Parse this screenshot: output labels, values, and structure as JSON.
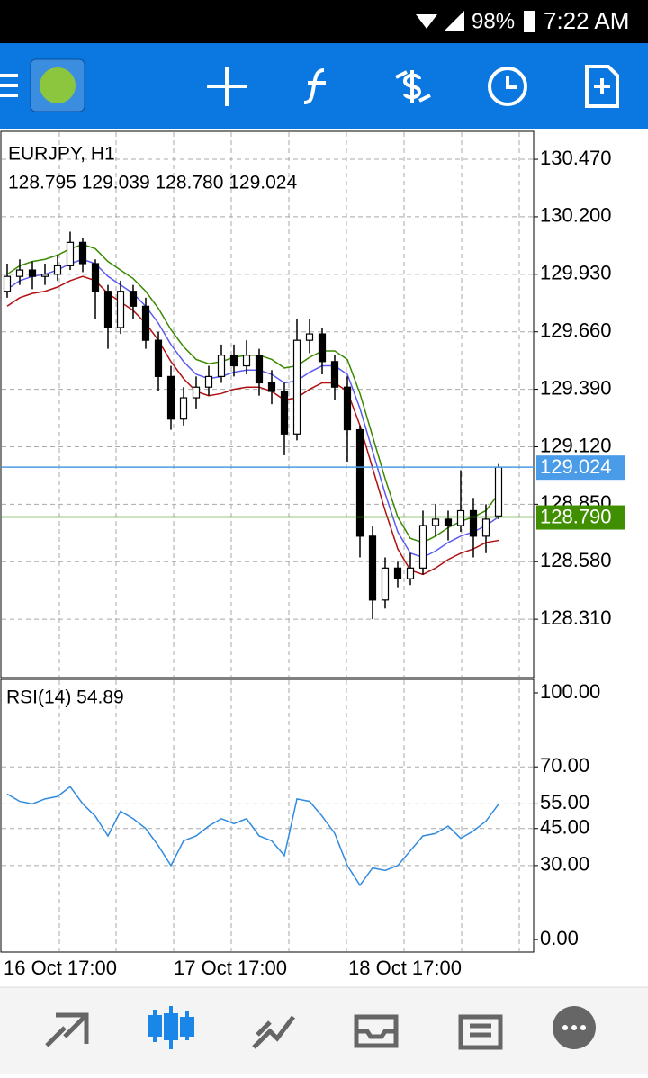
{
  "status_bar": {
    "battery": "98%",
    "time": "7:22 AM"
  },
  "chart": {
    "type": "candlestick",
    "title": "EURJPY, H1",
    "ohlc_label": "128.795 129.039 128.780 129.024",
    "ylim": [
      128.04,
      130.597
    ],
    "yticks": [
      {
        "value": 130.47,
        "label": "130.470"
      },
      {
        "value": 130.2,
        "label": "130.200"
      },
      {
        "value": 129.93,
        "label": "129.930"
      },
      {
        "value": 129.66,
        "label": "129.660"
      },
      {
        "value": 129.39,
        "label": "129.390"
      },
      {
        "value": 129.12,
        "label": "129.120"
      },
      {
        "value": 128.85,
        "label": "128.850"
      },
      {
        "value": 128.58,
        "label": "128.580"
      },
      {
        "value": 128.31,
        "label": "128.310"
      }
    ],
    "open": [
      129.85,
      129.92,
      129.95,
      129.92,
      129.93,
      129.97,
      130.08,
      129.98,
      129.85,
      129.68,
      129.85,
      129.78,
      129.62,
      129.45,
      129.25,
      129.35,
      129.4,
      129.45,
      129.55,
      129.5,
      129.55,
      129.42,
      129.38,
      129.18,
      129.62,
      129.65,
      129.52,
      129.4,
      129.2,
      128.7,
      128.4,
      128.55,
      128.5,
      128.55,
      128.75,
      128.78,
      128.75,
      128.82,
      128.7,
      128.795
    ],
    "high": [
      129.98,
      130,
      129.99,
      129.98,
      130.02,
      130.13,
      130.1,
      130,
      129.88,
      129.9,
      129.88,
      129.82,
      129.66,
      129.5,
      129.4,
      129.45,
      129.5,
      129.6,
      129.6,
      129.62,
      129.58,
      129.48,
      129.42,
      129.72,
      129.72,
      129.68,
      129.55,
      129.45,
      129.22,
      128.75,
      128.6,
      128.58,
      128.62,
      128.82,
      128.85,
      128.82,
      129.01,
      128.88,
      128.85,
      129.039
    ],
    "low": [
      129.82,
      129.88,
      129.86,
      129.88,
      129.9,
      129.95,
      129.94,
      129.72,
      129.58,
      129.65,
      129.72,
      129.58,
      129.38,
      129.2,
      129.22,
      129.3,
      129.36,
      129.42,
      129.45,
      129.46,
      129.36,
      129.32,
      129.08,
      129.15,
      129.56,
      129.46,
      129.34,
      129.05,
      128.6,
      128.31,
      128.36,
      128.46,
      128.47,
      128.52,
      128.7,
      128.68,
      128.72,
      128.6,
      128.62,
      128.78
    ],
    "close": [
      129.92,
      129.95,
      129.92,
      129.93,
      129.97,
      130.08,
      129.98,
      129.85,
      129.68,
      129.85,
      129.78,
      129.62,
      129.45,
      129.25,
      129.35,
      129.4,
      129.45,
      129.55,
      129.5,
      129.55,
      129.42,
      129.38,
      129.18,
      129.62,
      129.65,
      129.52,
      129.4,
      129.2,
      128.7,
      128.4,
      128.55,
      128.5,
      128.55,
      128.75,
      128.78,
      128.75,
      128.82,
      128.7,
      128.78,
      129.024
    ],
    "series": [
      {
        "color": "#3a8a00",
        "values": [
          129.93,
          129.97,
          129.99,
          130,
          130.02,
          130.05,
          130.07,
          130.05,
          129.99,
          129.95,
          129.91,
          129.85,
          129.77,
          129.67,
          129.59,
          129.53,
          129.51,
          129.52,
          129.54,
          129.55,
          129.55,
          129.53,
          129.49,
          129.5,
          129.54,
          129.57,
          129.57,
          129.53,
          129.37,
          129.17,
          128.97,
          128.79,
          128.69,
          128.67,
          128.7,
          128.74,
          128.77,
          128.79,
          128.82,
          128.9
        ]
      },
      {
        "color": "#5b5bef",
        "values": [
          129.86,
          129.9,
          129.92,
          129.93,
          129.95,
          129.98,
          130,
          129.98,
          129.92,
          129.88,
          129.84,
          129.78,
          129.7,
          129.6,
          129.52,
          129.46,
          129.44,
          129.45,
          129.47,
          129.48,
          129.48,
          129.46,
          129.42,
          129.43,
          129.47,
          129.5,
          129.5,
          129.46,
          129.3,
          129.1,
          128.9,
          128.72,
          128.62,
          128.6,
          128.63,
          128.67,
          128.7,
          128.72,
          128.75,
          128.79
        ]
      },
      {
        "color": "#b01010",
        "values": [
          129.78,
          129.82,
          129.84,
          129.85,
          129.87,
          129.9,
          129.92,
          129.9,
          129.84,
          129.8,
          129.76,
          129.7,
          129.62,
          129.52,
          129.44,
          129.38,
          129.36,
          129.37,
          129.39,
          129.4,
          129.4,
          129.38,
          129.34,
          129.35,
          129.39,
          129.42,
          129.42,
          129.38,
          129.22,
          129.02,
          128.82,
          128.64,
          128.54,
          128.52,
          128.55,
          128.59,
          128.62,
          128.64,
          128.67,
          128.68
        ]
      }
    ],
    "price_lines": [
      {
        "value": 129.024,
        "label": "129.024",
        "color": "#4a9be8"
      },
      {
        "value": 128.79,
        "label": "128.790",
        "color": "#3f8f00"
      }
    ],
    "x_labels": [
      "16 Oct 17:00",
      "17 Oct 17:00",
      "18 Oct 17:00"
    ]
  },
  "rsi": {
    "type": "line",
    "title": "RSI(14) 54.89",
    "color": "#2f8ae0",
    "ylim": [
      -4.7,
      105.1
    ],
    "yticks": [
      {
        "value": 100,
        "label": "100.00"
      },
      {
        "value": 70,
        "label": "70.00"
      },
      {
        "value": 55,
        "label": "55.00"
      },
      {
        "value": 45,
        "label": "45.00"
      },
      {
        "value": 30,
        "label": "30.00"
      },
      {
        "value": 0,
        "label": "0.00"
      }
    ],
    "values": [
      59,
      56,
      55,
      57,
      58,
      62,
      55,
      50,
      42,
      52,
      49,
      45,
      38,
      30,
      40,
      42,
      46,
      49,
      47,
      49,
      42,
      40,
      34,
      57,
      56,
      50,
      43,
      30,
      22,
      29,
      28,
      30,
      36,
      42,
      43,
      46,
      41,
      44,
      48,
      54.89
    ]
  }
}
